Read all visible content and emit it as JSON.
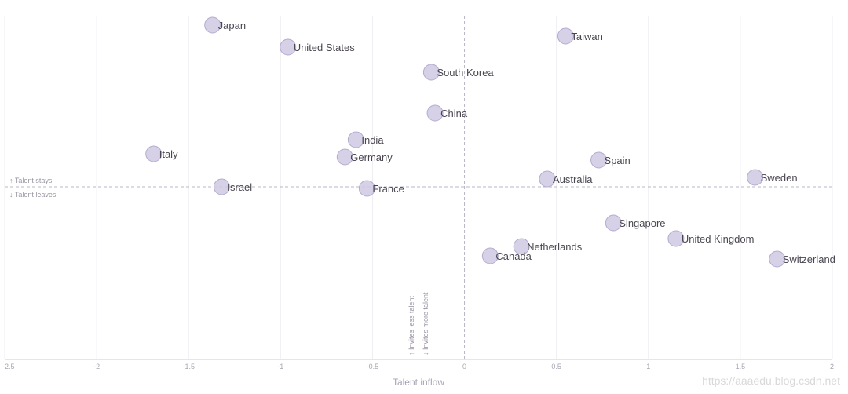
{
  "chart_data": {
    "type": "scatter",
    "xlabel": "Talent inflow",
    "ylabel": "",
    "xlim": [
      -2.5,
      2
    ],
    "x_ticks": [
      "-2.5",
      "-2",
      "-1.5",
      "-1",
      "-0.5",
      "0",
      "0.5",
      "1",
      "1.5",
      "2"
    ],
    "x_tick_values": [
      -2.5,
      -2,
      -1.5,
      -1,
      -0.5,
      0,
      0.5,
      1,
      1.5,
      2
    ],
    "ylim": [
      -1.4,
      1.2
    ],
    "y_axis_ticks_shown": false,
    "grid": "vertical",
    "point_color": "#cfc9e3",
    "point_stroke": "#b3abd0",
    "points": [
      {
        "label": "Japan",
        "x": -1.37,
        "y": 1.03
      },
      {
        "label": "United States",
        "x": -0.96,
        "y": 0.89
      },
      {
        "label": "Taiwan",
        "x": 0.55,
        "y": 0.96
      },
      {
        "label": "South Korea",
        "x": -0.18,
        "y": 0.73
      },
      {
        "label": "China",
        "x": -0.16,
        "y": 0.47
      },
      {
        "label": "India",
        "x": -0.59,
        "y": 0.3
      },
      {
        "label": "Italy",
        "x": -1.69,
        "y": 0.21
      },
      {
        "label": "Germany",
        "x": -0.65,
        "y": 0.19
      },
      {
        "label": "Spain",
        "x": 0.73,
        "y": 0.17
      },
      {
        "label": "Australia",
        "x": 0.45,
        "y": 0.05
      },
      {
        "label": "Sweden",
        "x": 1.58,
        "y": 0.06
      },
      {
        "label": "Israel",
        "x": -1.32,
        "y": 0.0
      },
      {
        "label": "France",
        "x": -0.53,
        "y": -0.01
      },
      {
        "label": "Singapore",
        "x": 0.81,
        "y": -0.23
      },
      {
        "label": "United Kingdom",
        "x": 1.15,
        "y": -0.33
      },
      {
        "label": "Netherlands",
        "x": 0.31,
        "y": -0.38
      },
      {
        "label": "Canada",
        "x": 0.14,
        "y": -0.44
      },
      {
        "label": "Switzerland",
        "x": 1.7,
        "y": -0.46
      }
    ],
    "reference_lines": [
      {
        "axis": "x",
        "value": 0,
        "style": "dashed"
      },
      {
        "axis": "y",
        "value": 0,
        "style": "dashed"
      }
    ],
    "annotations": {
      "talent_stays": "↑ Talent stays",
      "talent_leaves": "↓ Talent leaves",
      "invites_less": "↑ Invites less talent",
      "invites_more": "↓ Invites more talent"
    }
  },
  "watermark": "https://aaaedu.blog.csdn.net"
}
